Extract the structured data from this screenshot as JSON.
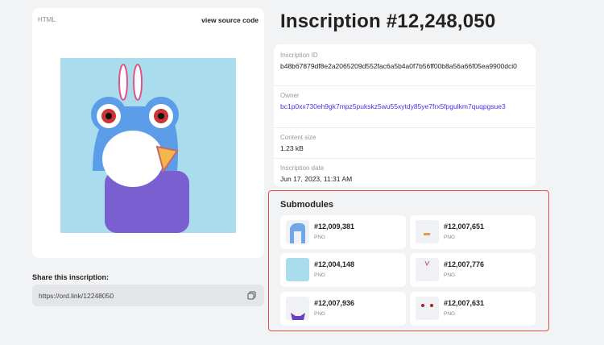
{
  "preview": {
    "type_label": "HTML",
    "source_link": "view source code"
  },
  "share": {
    "label": "Share this inscription:",
    "url": "https://ord.link/12248050"
  },
  "title": "Inscription #12,248,050",
  "details": [
    {
      "label": "Inscription ID",
      "value": "b48b67879df8e2a2065209d552fac6a5b4a0f7b56ff00b8a56a66f05ea9900dci0"
    },
    {
      "label": "Owner",
      "value": "bc1p0xx730eh9gk7mpz5pukskz5wu55xytdy85ye7frx5fpgulkm7quqpgsue3"
    },
    {
      "label": "Content size",
      "value": "1.23 kB"
    },
    {
      "label": "Inscription date",
      "value": "Jun 17, 2023, 11:31 AM"
    }
  ],
  "submodules": {
    "heading": "Submodules",
    "items": [
      {
        "number": "#12,009,381",
        "type": "PNG"
      },
      {
        "number": "#12,007,651",
        "type": "PNG"
      },
      {
        "number": "#12,004,148",
        "type": "PNG"
      },
      {
        "number": "#12,007,776",
        "type": "PNG"
      },
      {
        "number": "#12,007,936",
        "type": "PNG"
      },
      {
        "number": "#12,007,631",
        "type": "PNG"
      }
    ]
  },
  "colors": {
    "accent_link": "#4b2ee6",
    "highlight_border": "#e0524a",
    "art_background": "#a9dcec"
  }
}
